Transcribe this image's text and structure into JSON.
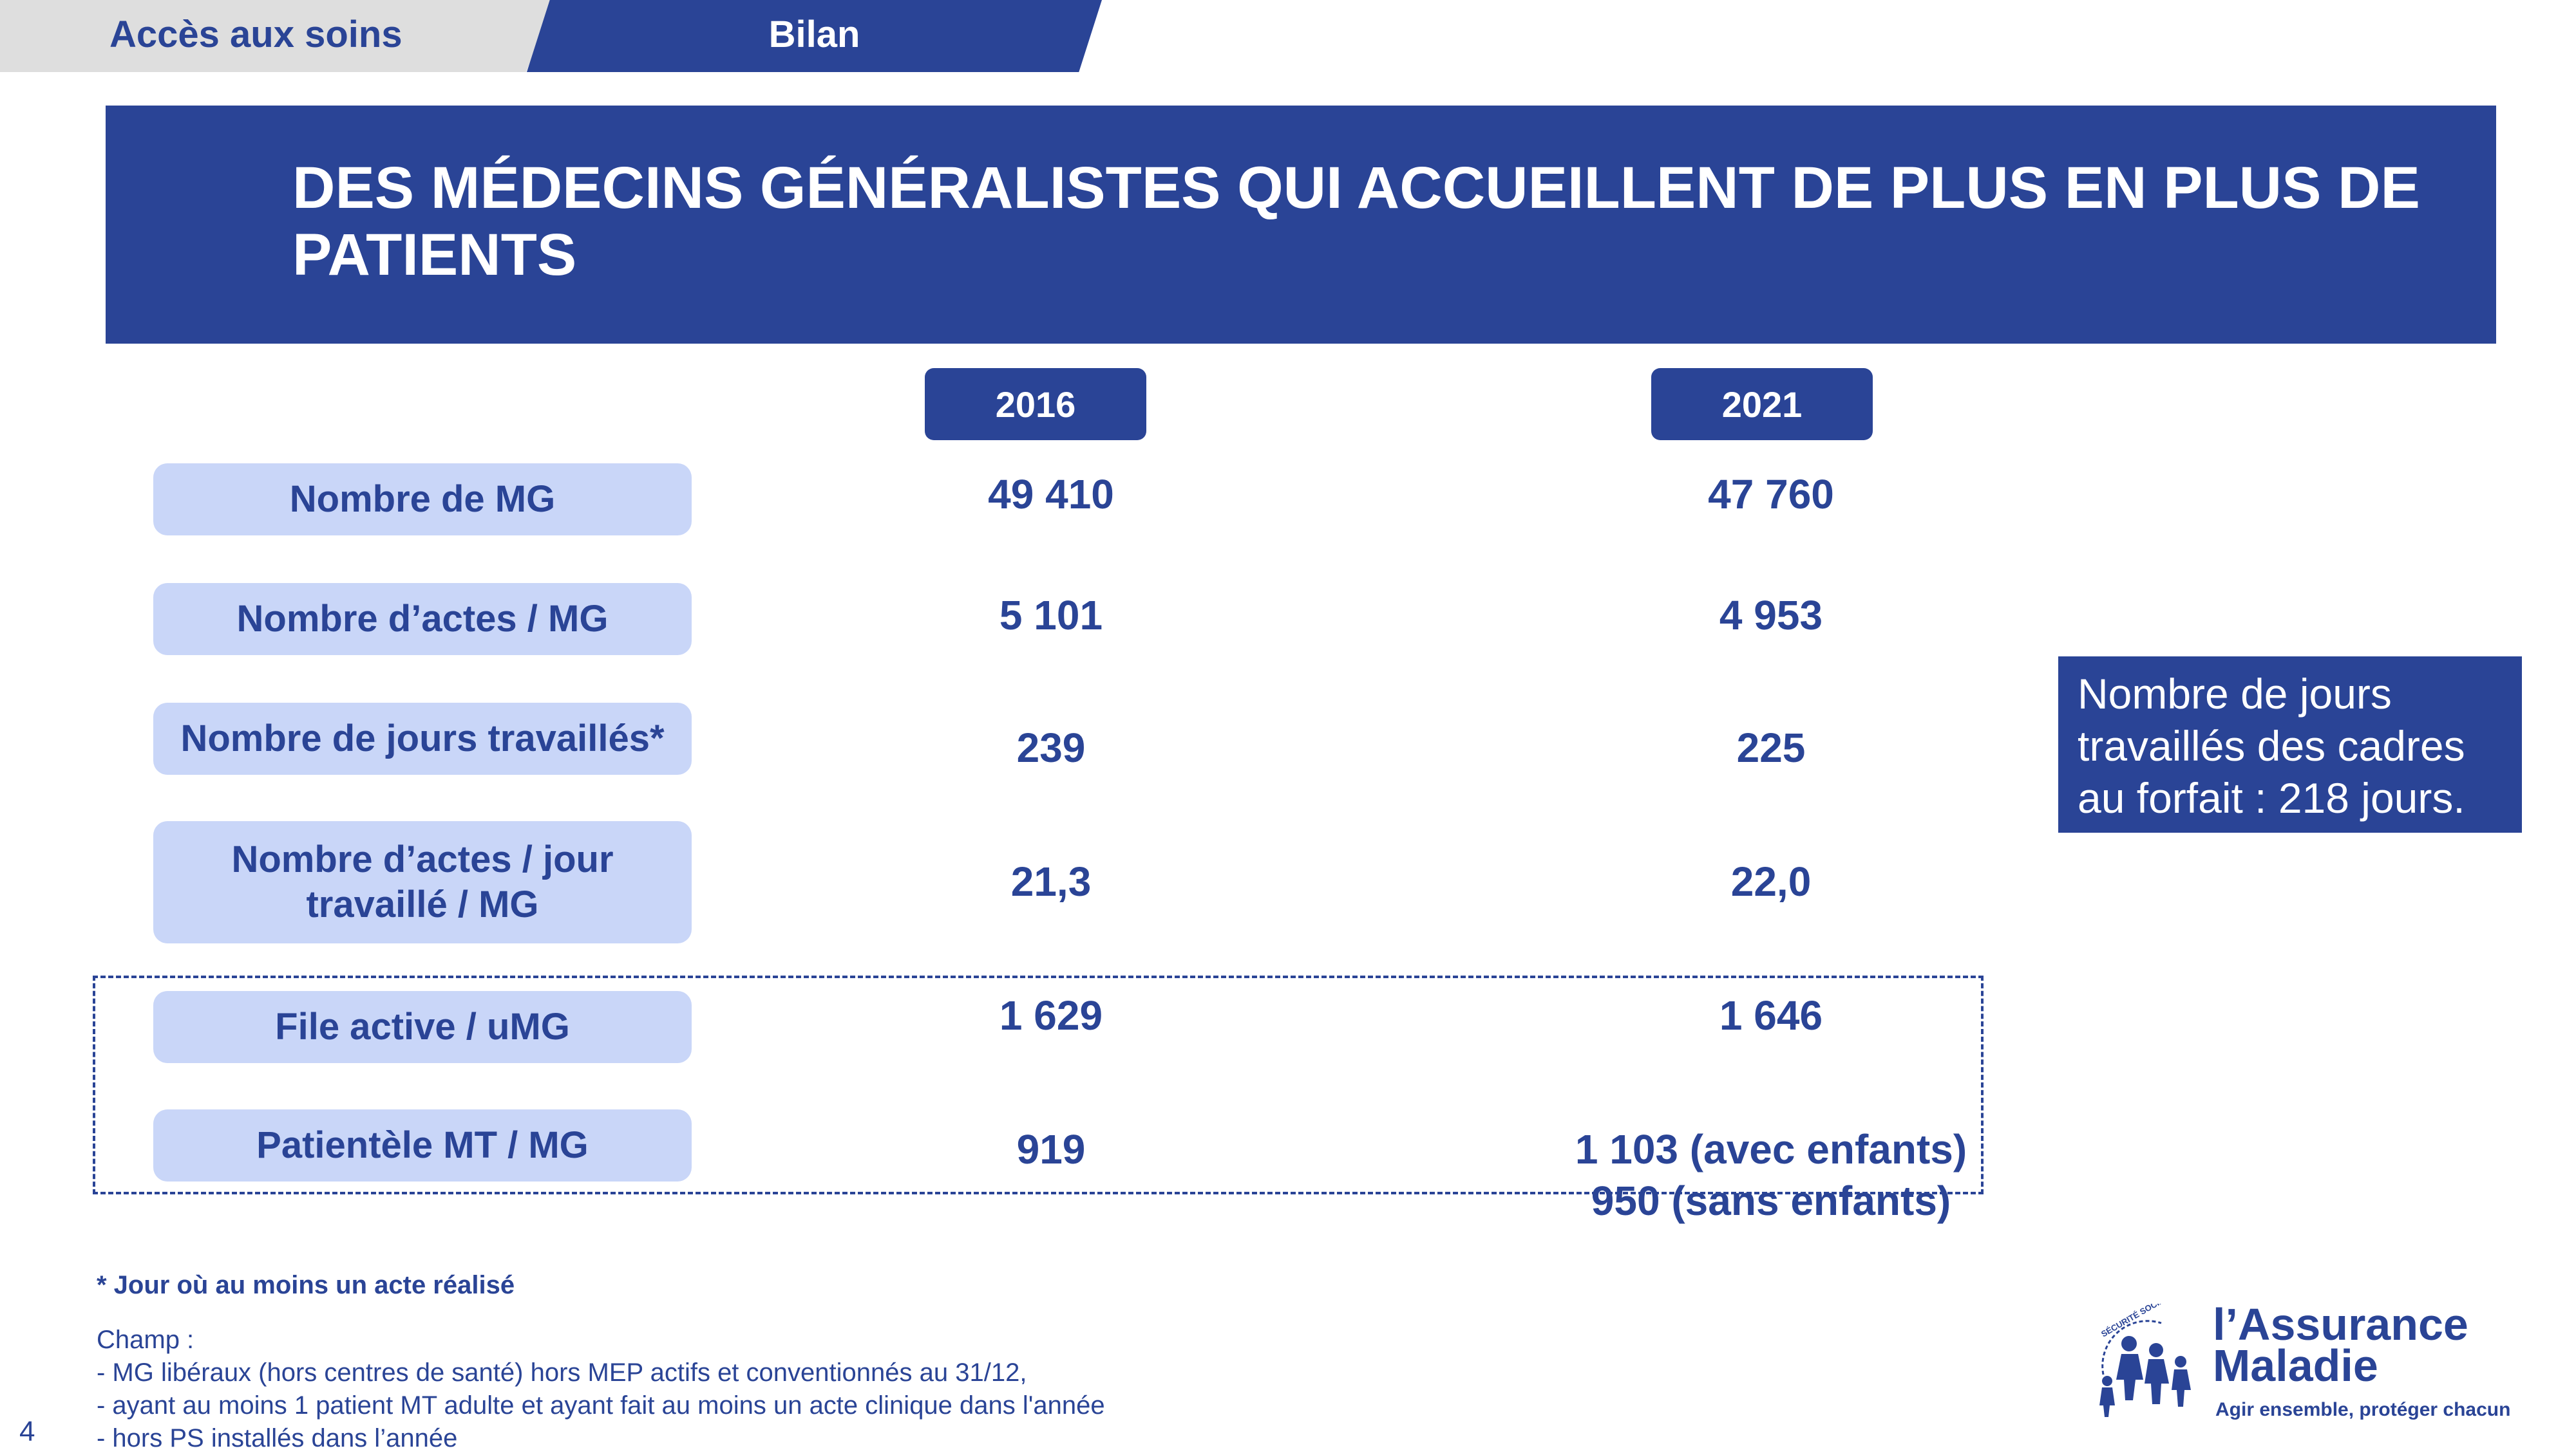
{
  "tabs": [
    {
      "label": "Accès aux soins"
    },
    {
      "label": "Bilan"
    }
  ],
  "title": "DES MÉDECINS GÉNÉRALISTES QUI ACCUEILLENT DE PLUS EN PLUS DE PATIENTS",
  "years": [
    "2016",
    "2021"
  ],
  "rows": [
    {
      "label": "Nombre de MG",
      "v2016": "49 410",
      "v2021": "47 760"
    },
    {
      "label": "Nombre d’actes / MG",
      "v2016": "5 101",
      "v2021": "4 953"
    },
    {
      "label": "Nombre de jours travaillés*",
      "v2016": "239",
      "v2021": "225"
    },
    {
      "label_line1": "Nombre d’actes / jour",
      "label_line2": "travaillé / MG",
      "v2016": "21,3",
      "v2021": "22,0"
    },
    {
      "label": "File active / uMG",
      "v2016": "1 629",
      "v2021": "1 646"
    },
    {
      "label": "Patientèle MT / MG",
      "v2016": "919",
      "v2021_line1": "1 103 (avec enfants)",
      "v2021_line2": "950 (sans enfants)"
    }
  ],
  "side_note": {
    "line1": "Nombre de jours",
    "line2": "travaillés des cadres",
    "line3": "au forfait : 218 jours."
  },
  "footnote": "* Jour où au moins un acte réalisé",
  "champ": {
    "heading": "Champ :",
    "items": [
      "- MG libéraux (hors centres de santé) hors MEP actifs et conventionnés au 31/12,",
      "- ayant au moins 1 patient MT adulte et ayant fait au moins un acte clinique dans l'année",
      "- hors PS installés dans l’année"
    ]
  },
  "page_number": "4",
  "logo": {
    "line1": "l’Assurance",
    "line2": "Maladie",
    "tagline": "Agir ensemble, protéger chacun",
    "seal_text": "SÉCURITÉ SOCIALE",
    "icon": "people-circle-logo-icon"
  },
  "colors": {
    "primary": "#2a4496",
    "label_bg": "#c9d6f8",
    "tab_grey": "#dedede"
  }
}
